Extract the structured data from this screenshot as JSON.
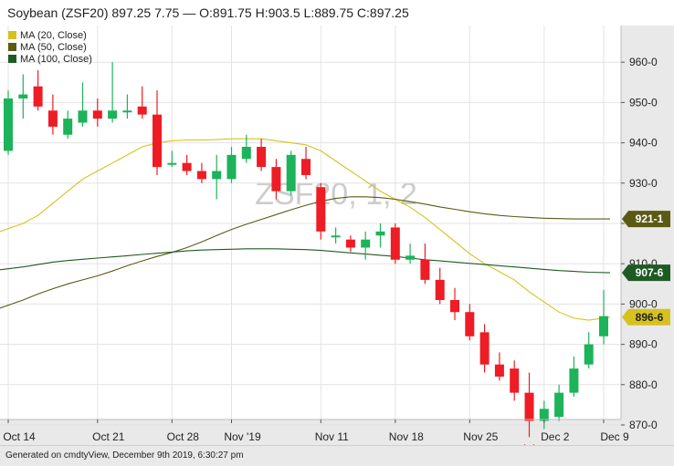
{
  "header": {
    "title": "Soybean (ZSF20) 897.25 7.75 — O:891.75 H:903.5 L:889.75 C:897.25"
  },
  "footer": {
    "generated": "Generated on cmdtyView, December 9th 2019, 6:30:27 pm"
  },
  "colors": {
    "up": "#1cb35a",
    "down": "#ee1c25",
    "ma20": "#d6c21e",
    "ma50": "#5a5a14",
    "ma100": "#1e5b24",
    "grid": "#e3e3e3",
    "watermark": "#cccccc"
  },
  "chart_data": {
    "type": "candlestick",
    "watermark": "ZSF20, 1, 2",
    "ylim": [
      864,
      964
    ],
    "yticks": [
      "960-0",
      "950-0",
      "940-0",
      "930-0",
      "920-0",
      "910-0",
      "900-0",
      "890-0",
      "880-0",
      "870-0"
    ],
    "ytick_values": [
      960,
      950,
      940,
      930,
      920,
      910,
      900,
      890,
      880,
      870
    ],
    "xtick_labels": [
      "Oct 14",
      "Oct 21",
      "Oct 28",
      "Nov '19",
      "Nov 11",
      "Nov 18",
      "Nov 25",
      "Dec 2",
      "Dec 9"
    ],
    "xtick_index": [
      0,
      6,
      11,
      15,
      21,
      26,
      31,
      36,
      40
    ],
    "candles": [
      {
        "o": 938,
        "h": 953,
        "l": 937,
        "c": 951
      },
      {
        "o": 951,
        "h": 957,
        "l": 946,
        "c": 952
      },
      {
        "o": 954,
        "h": 958,
        "l": 948,
        "c": 949
      },
      {
        "o": 948,
        "h": 952,
        "l": 942,
        "c": 944
      },
      {
        "o": 942,
        "h": 948,
        "l": 941,
        "c": 946
      },
      {
        "o": 945,
        "h": 955,
        "l": 944,
        "c": 948
      },
      {
        "o": 948,
        "h": 951,
        "l": 944,
        "c": 946
      },
      {
        "o": 946,
        "h": 960,
        "l": 945,
        "c": 948
      },
      {
        "o": 948,
        "h": 952,
        "l": 946,
        "c": 948
      },
      {
        "o": 949,
        "h": 954,
        "l": 946,
        "c": 947
      },
      {
        "o": 947,
        "h": 953,
        "l": 932,
        "c": 934
      },
      {
        "o": 935,
        "h": 938,
        "l": 934,
        "c": 935
      },
      {
        "o": 935,
        "h": 937,
        "l": 932,
        "c": 933
      },
      {
        "o": 933,
        "h": 935,
        "l": 930,
        "c": 931
      },
      {
        "o": 931,
        "h": 937,
        "l": 926,
        "c": 933
      },
      {
        "o": 931,
        "h": 939,
        "l": 930,
        "c": 937
      },
      {
        "o": 936,
        "h": 942,
        "l": 935,
        "c": 939
      },
      {
        "o": 939,
        "h": 941,
        "l": 933,
        "c": 934
      },
      {
        "o": 934,
        "h": 936,
        "l": 926,
        "c": 928
      },
      {
        "o": 928,
        "h": 938,
        "l": 927,
        "c": 937
      },
      {
        "o": 936,
        "h": 939,
        "l": 931,
        "c": 932
      },
      {
        "o": 929,
        "h": 930,
        "l": 916,
        "c": 918
      },
      {
        "o": 917,
        "h": 919,
        "l": 915,
        "c": 917
      },
      {
        "o": 916,
        "h": 917,
        "l": 913,
        "c": 914
      },
      {
        "o": 914,
        "h": 918,
        "l": 911,
        "c": 916
      },
      {
        "o": 917,
        "h": 920,
        "l": 914,
        "c": 918
      },
      {
        "o": 919,
        "h": 920,
        "l": 910,
        "c": 911
      },
      {
        "o": 911,
        "h": 915,
        "l": 910,
        "c": 912
      },
      {
        "o": 911,
        "h": 915,
        "l": 905,
        "c": 906
      },
      {
        "o": 906,
        "h": 909,
        "l": 900,
        "c": 901
      },
      {
        "o": 901,
        "h": 904,
        "l": 896,
        "c": 898
      },
      {
        "o": 898,
        "h": 900,
        "l": 891,
        "c": 892
      },
      {
        "o": 893,
        "h": 895,
        "l": 883,
        "c": 885
      },
      {
        "o": 885,
        "h": 888,
        "l": 881,
        "c": 882
      },
      {
        "o": 884,
        "h": 886,
        "l": 876,
        "c": 878
      },
      {
        "o": 878,
        "h": 883,
        "l": 867,
        "c": 871
      },
      {
        "o": 871,
        "h": 876,
        "l": 869,
        "c": 874
      },
      {
        "o": 872,
        "h": 880,
        "l": 871,
        "c": 878
      },
      {
        "o": 878,
        "h": 887,
        "l": 877,
        "c": 884
      },
      {
        "o": 885,
        "h": 893,
        "l": 884,
        "c": 890
      },
      {
        "o": 892,
        "h": 903.5,
        "l": 890,
        "c": 897
      }
    ],
    "series": [
      {
        "name": "MA (20, Close)",
        "color": "#d6c21e",
        "end_label": "896-6",
        "values": [
          918,
          920,
          922,
          925,
          928,
          931,
          933,
          935,
          937,
          939,
          940,
          940.5,
          940.7,
          940.7,
          940.8,
          941,
          941,
          941,
          940.5,
          940,
          939.5,
          938,
          935.5,
          933,
          930.5,
          928,
          926,
          924,
          921.5,
          918.5,
          915.5,
          912.5,
          910,
          908,
          906,
          903,
          900.5,
          898,
          896.5,
          896,
          896.75
        ]
      },
      {
        "name": "MA (50, Close)",
        "color": "#5a5a14",
        "end_label": "921-1",
        "values": [
          899,
          901,
          902.5,
          903.8,
          905,
          906,
          907,
          908.2,
          909.5,
          910.7,
          911.8,
          912.8,
          914,
          915.4,
          917,
          918.5,
          919.8,
          921,
          922.2,
          923.4,
          924.5,
          925.5,
          926.2,
          926.6,
          926.6,
          926.4,
          926,
          925.4,
          924.8,
          924.1,
          923.5,
          922.9,
          922.4,
          922,
          921.7,
          921.5,
          921.3,
          921.2,
          921.1,
          921.1,
          921.1
        ]
      },
      {
        "name": "MA (100, Close)",
        "color": "#1e5b24",
        "end_label": "907-6",
        "values": [
          908.5,
          909.2,
          909.8,
          910.4,
          910.8,
          911.1,
          911.4,
          911.7,
          912,
          912.3,
          912.6,
          912.9,
          913.2,
          913.4,
          913.5,
          913.6,
          913.7,
          913.7,
          913.7,
          913.6,
          913.5,
          913.3,
          913,
          912.7,
          912.4,
          912.1,
          911.8,
          911.4,
          911,
          910.7,
          910.4,
          910.1,
          909.8,
          909.5,
          909.2,
          908.9,
          908.6,
          908.3,
          908.1,
          907.9,
          907.75
        ]
      }
    ],
    "legend": [
      "MA (20, Close)",
      "MA (50, Close)",
      "MA (100, Close)"
    ],
    "legend_position": "top-left",
    "annotation_marker": "low-point-arc",
    "grid": true
  }
}
